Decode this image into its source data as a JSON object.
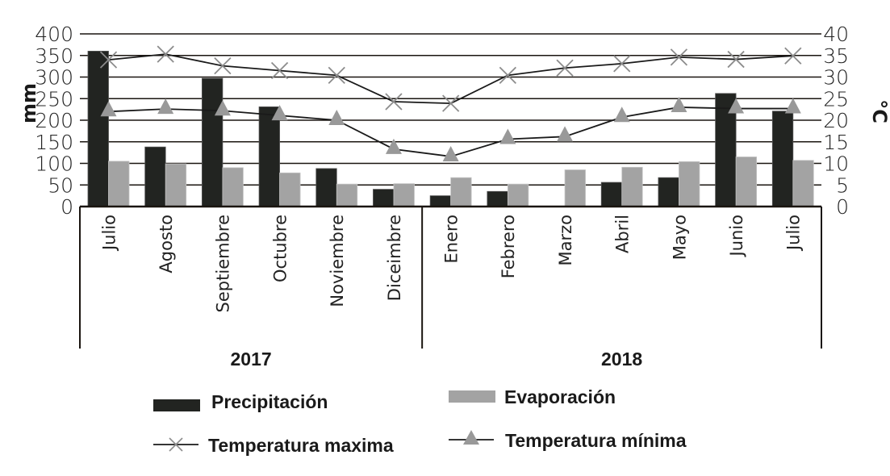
{
  "chart_data": {
    "type": "bar",
    "title": "",
    "xlabel": "",
    "ylabel": "mm",
    "ylabel_right": "°C",
    "ylim": [
      0,
      400
    ],
    "ylim_right": [
      0,
      40
    ],
    "yticks": [
      "0",
      "50",
      "100",
      "150",
      "200",
      "250",
      "300",
      "350",
      "400"
    ],
    "yticks_right": [
      "0",
      "5",
      "10",
      "15",
      "20",
      "25",
      "30",
      "35",
      "40"
    ],
    "grid": true,
    "categories": [
      "Julio",
      "Agosto",
      "Septiembre",
      "Octubre",
      "Noviembre",
      "Diceimbre",
      "Enero",
      "Febrero",
      "Marzo",
      "Abril",
      "Mayo",
      "Junio",
      "Julio"
    ],
    "groups": [
      {
        "label": "2017",
        "count": 6
      },
      {
        "label": "2018",
        "count": 7
      }
    ],
    "series": [
      {
        "name": "Precipitación",
        "type": "bar",
        "axis": "left",
        "color": "#222421",
        "values": [
          360,
          138,
          297,
          231,
          88,
          40,
          25,
          35,
          0,
          56,
          67,
          262,
          221
        ]
      },
      {
        "name": "Evaporación",
        "type": "bar",
        "axis": "left",
        "color": "#a3a3a3",
        "values": [
          105,
          99,
          90,
          78,
          52,
          53,
          67,
          52,
          85,
          91,
          104,
          115,
          107
        ]
      },
      {
        "name": "Temperatura maxima",
        "type": "line",
        "marker": "x",
        "axis": "right",
        "color": "#1a1a1a",
        "marker_color": "#8c8c8c",
        "values": [
          34.0,
          35.3,
          32.6,
          31.5,
          30.4,
          24.3,
          23.9,
          30.4,
          32.1,
          33.1,
          34.6,
          34.1,
          34.9
        ]
      },
      {
        "name": "Temperatura mínima",
        "type": "line",
        "marker": "triangle",
        "axis": "right",
        "color": "#1a1a1a",
        "marker_color": "#999999",
        "values": [
          22.0,
          22.6,
          22.2,
          21.1,
          20.0,
          13.3,
          11.6,
          15.6,
          16.2,
          20.7,
          23.0,
          22.7,
          22.7
        ]
      }
    ],
    "legend": {
      "placement": "bottom",
      "items": [
        {
          "label": "Precipitación",
          "symbol": "bar-dark"
        },
        {
          "label": "Evaporación",
          "symbol": "bar-gray"
        },
        {
          "label": "Temperatura maxima",
          "symbol": "line-x"
        },
        {
          "label": "Temperatura mínima",
          "symbol": "line-triangle"
        }
      ]
    }
  }
}
